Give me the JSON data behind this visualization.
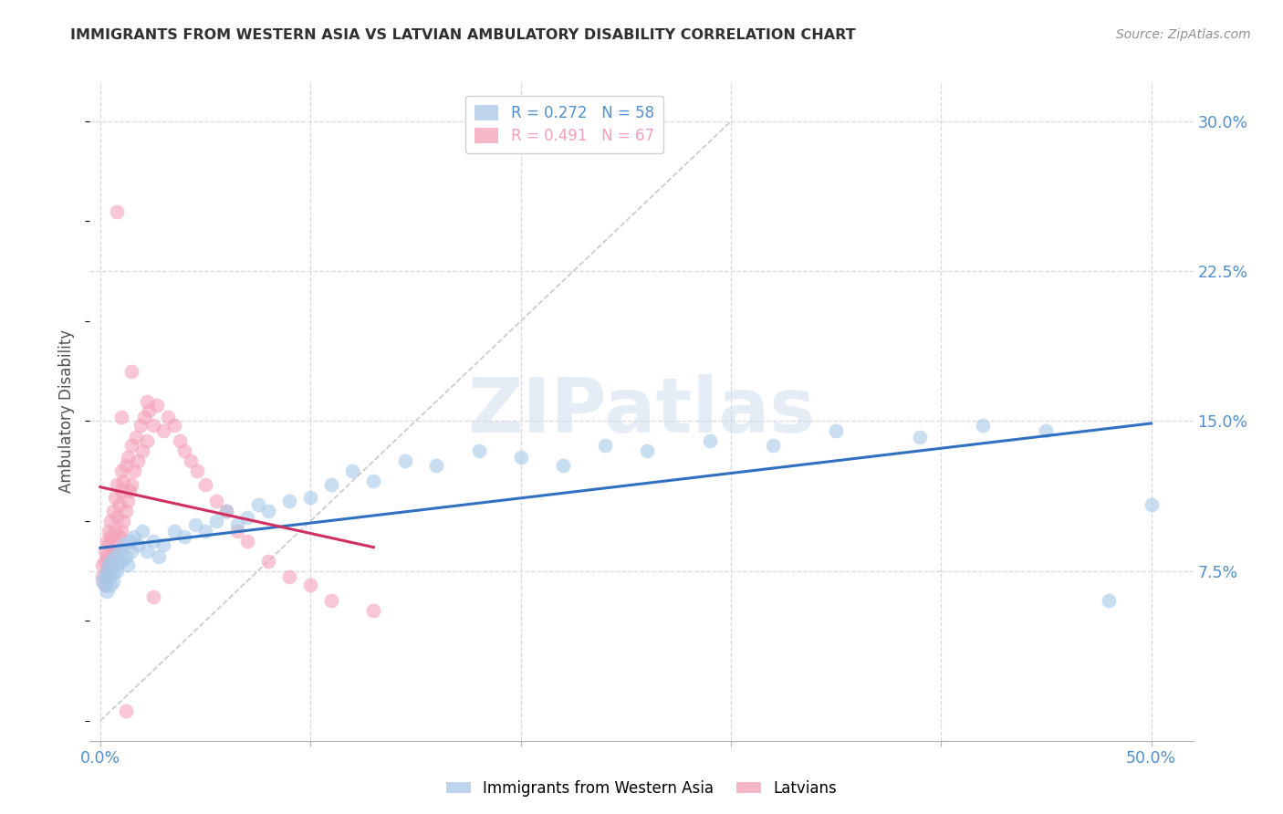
{
  "title": "IMMIGRANTS FROM WESTERN ASIA VS LATVIAN AMBULATORY DISABILITY CORRELATION CHART",
  "source": "Source: ZipAtlas.com",
  "ylabel": "Ambulatory Disability",
  "xlim": [
    0.0,
    0.52
  ],
  "ylim": [
    0.0,
    0.32
  ],
  "y_ticks": [
    0.075,
    0.15,
    0.225,
    0.3
  ],
  "y_tick_labels": [
    "7.5%",
    "15.0%",
    "22.5%",
    "30.0%"
  ],
  "x_ticks": [
    0.0,
    0.1,
    0.2,
    0.3,
    0.4,
    0.5
  ],
  "x_tick_labels_show": [
    "0.0%",
    "",
    "",
    "",
    "",
    "50.0%"
  ],
  "watermark_text": "ZIPatlas",
  "series1_color": "#a8c8e8",
  "series2_color": "#f4a0b8",
  "trendline1_color": "#3070c0",
  "trendline2_color": "#d03060",
  "diagonal_color": "#c8c8c8",
  "grid_color": "#d8d8d8",
  "title_color": "#303030",
  "source_color": "#909090",
  "tick_color": "#5090d0",
  "ylabel_color": "#505050",
  "legend1_label": "R = 0.272   N = 58",
  "legend2_label": "R = 0.491   N = 67",
  "bottom_legend1": "Immigrants from Western Asia",
  "bottom_legend2": "Latvians",
  "blue_x": [
    0.001,
    0.002,
    0.002,
    0.003,
    0.003,
    0.004,
    0.004,
    0.005,
    0.005,
    0.006,
    0.006,
    0.007,
    0.008,
    0.008,
    0.009,
    0.01,
    0.011,
    0.012,
    0.013,
    0.014,
    0.015,
    0.016,
    0.018,
    0.02,
    0.022,
    0.025,
    0.028,
    0.03,
    0.035,
    0.04,
    0.045,
    0.05,
    0.055,
    0.06,
    0.065,
    0.07,
    0.075,
    0.08,
    0.09,
    0.1,
    0.11,
    0.12,
    0.13,
    0.145,
    0.16,
    0.18,
    0.2,
    0.22,
    0.24,
    0.26,
    0.29,
    0.32,
    0.35,
    0.39,
    0.42,
    0.45,
    0.48,
    0.5
  ],
  "blue_y": [
    0.07,
    0.068,
    0.072,
    0.065,
    0.075,
    0.078,
    0.072,
    0.068,
    0.08,
    0.074,
    0.07,
    0.082,
    0.075,
    0.078,
    0.085,
    0.08,
    0.088,
    0.082,
    0.078,
    0.09,
    0.085,
    0.092,
    0.088,
    0.095,
    0.085,
    0.09,
    0.082,
    0.088,
    0.095,
    0.092,
    0.098,
    0.095,
    0.1,
    0.105,
    0.098,
    0.102,
    0.108,
    0.105,
    0.11,
    0.112,
    0.118,
    0.125,
    0.12,
    0.13,
    0.128,
    0.135,
    0.132,
    0.128,
    0.138,
    0.135,
    0.14,
    0.138,
    0.145,
    0.142,
    0.148,
    0.145,
    0.06,
    0.108
  ],
  "pink_x": [
    0.001,
    0.001,
    0.002,
    0.002,
    0.002,
    0.003,
    0.003,
    0.003,
    0.004,
    0.004,
    0.005,
    0.005,
    0.005,
    0.006,
    0.006,
    0.007,
    0.007,
    0.008,
    0.008,
    0.008,
    0.009,
    0.009,
    0.01,
    0.01,
    0.01,
    0.011,
    0.011,
    0.012,
    0.012,
    0.013,
    0.013,
    0.014,
    0.015,
    0.015,
    0.016,
    0.017,
    0.018,
    0.019,
    0.02,
    0.021,
    0.022,
    0.023,
    0.025,
    0.027,
    0.03,
    0.032,
    0.035,
    0.038,
    0.04,
    0.043,
    0.046,
    0.05,
    0.055,
    0.06,
    0.065,
    0.07,
    0.08,
    0.09,
    0.1,
    0.11,
    0.13,
    0.022,
    0.015,
    0.01,
    0.008,
    0.012,
    0.025
  ],
  "pink_y": [
    0.072,
    0.078,
    0.068,
    0.08,
    0.085,
    0.075,
    0.09,
    0.082,
    0.088,
    0.095,
    0.078,
    0.092,
    0.1,
    0.085,
    0.105,
    0.095,
    0.112,
    0.088,
    0.102,
    0.118,
    0.092,
    0.108,
    0.095,
    0.115,
    0.125,
    0.1,
    0.12,
    0.105,
    0.128,
    0.11,
    0.132,
    0.115,
    0.118,
    0.138,
    0.125,
    0.142,
    0.13,
    0.148,
    0.135,
    0.152,
    0.14,
    0.155,
    0.148,
    0.158,
    0.145,
    0.152,
    0.148,
    0.14,
    0.135,
    0.13,
    0.125,
    0.118,
    0.11,
    0.105,
    0.095,
    0.09,
    0.08,
    0.072,
    0.068,
    0.06,
    0.055,
    0.16,
    0.175,
    0.152,
    0.255,
    0.005,
    0.062
  ]
}
